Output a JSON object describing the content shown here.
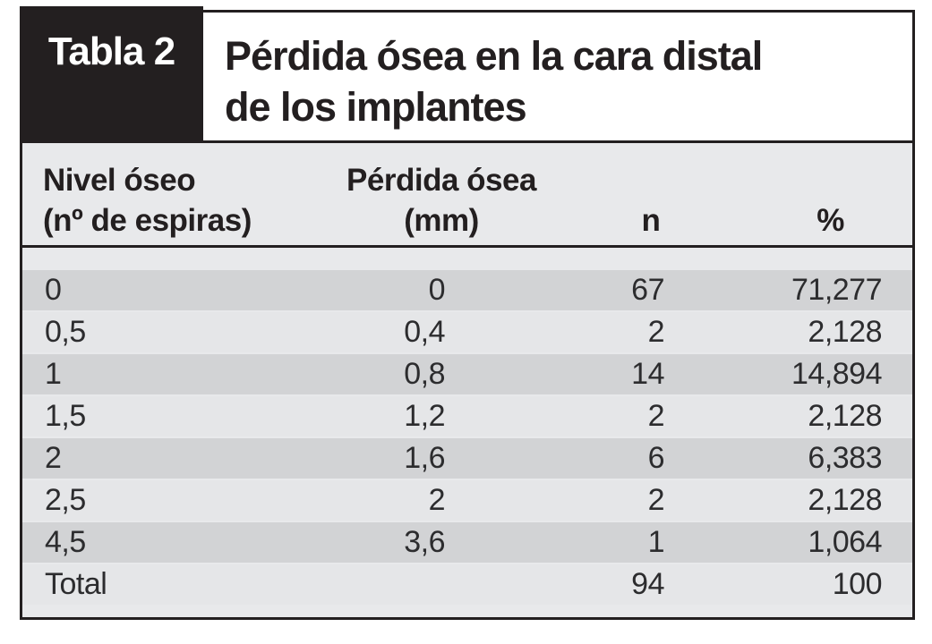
{
  "figure": {
    "tab_label": "Tabla 2",
    "title_line1": "Pérdida ósea en la cara distal",
    "title_line2": "de los implantes"
  },
  "table": {
    "columns": [
      {
        "line1": "Nivel óseo",
        "line2": "(nº de espiras)"
      },
      {
        "line1": "Pérdida ósea",
        "line2": "(mm)"
      },
      {
        "line1": "",
        "line2": "n"
      },
      {
        "line1": "",
        "line2": "%"
      }
    ],
    "rows": [
      {
        "nivel": "0",
        "perdida": "0",
        "n": "67",
        "pct": "71,277"
      },
      {
        "nivel": "0,5",
        "perdida": "0,4",
        "n": "2",
        "pct": "2,128"
      },
      {
        "nivel": "1",
        "perdida": "0,8",
        "n": "14",
        "pct": "14,894"
      },
      {
        "nivel": "1,5",
        "perdida": "1,2",
        "n": "2",
        "pct": "2,128"
      },
      {
        "nivel": "2",
        "perdida": "1,6",
        "n": "6",
        "pct": "6,383"
      },
      {
        "nivel": "2,5",
        "perdida": "2",
        "n": "2",
        "pct": "2,128"
      },
      {
        "nivel": "4,5",
        "perdida": "3,6",
        "n": "1",
        "pct": "1,064"
      },
      {
        "nivel": "Total",
        "perdida": "",
        "n": "94",
        "pct": "100"
      }
    ]
  },
  "colors": {
    "ink_black": "#231f20",
    "body_background": "#e8e9eb",
    "row_dark": "#d2d3d5",
    "row_light": "#e5e6e8",
    "text_data": "#2c2c2e",
    "label_text": "#ffffff"
  },
  "chart_data": {
    "type": "table",
    "title": "Tabla 2 — Pérdida ósea en la cara distal de los implantes",
    "columns": [
      "Nivel óseo (nº de espiras)",
      "Pérdida ósea (mm)",
      "n",
      "%"
    ],
    "rows": [
      [
        "0",
        "0",
        "67",
        "71,277"
      ],
      [
        "0,5",
        "0,4",
        "2",
        "2,128"
      ],
      [
        "1",
        "0,8",
        "14",
        "14,894"
      ],
      [
        "1,5",
        "1,2",
        "2",
        "2,128"
      ],
      [
        "2",
        "1,6",
        "6",
        "6,383"
      ],
      [
        "2,5",
        "2",
        "2",
        "2,128"
      ],
      [
        "4,5",
        "3,6",
        "1",
        "1,064"
      ],
      [
        "Total",
        "",
        "94",
        "100"
      ]
    ]
  }
}
